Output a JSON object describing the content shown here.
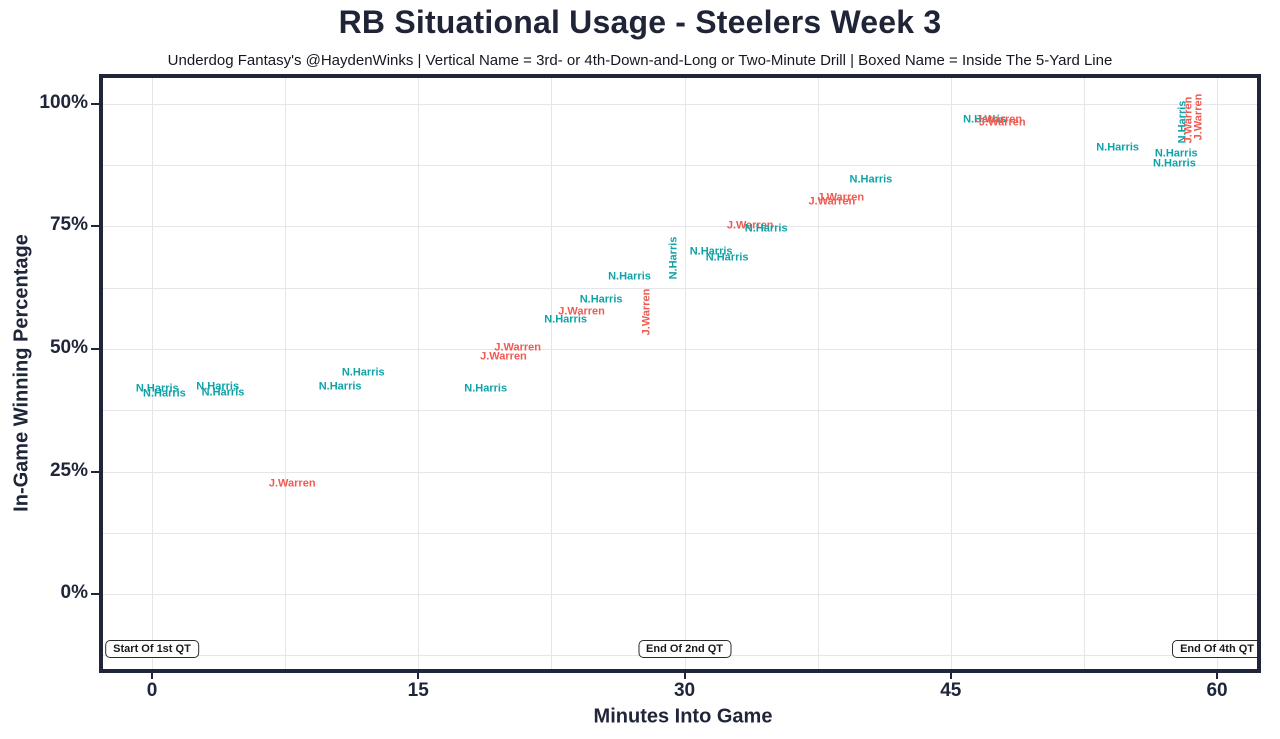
{
  "title": "RB Situational Usage - Steelers Week 3",
  "subtitle": "Underdog Fantasy's @HaydenWinks | Vertical Name = 3rd- or 4th-Down-and-Long or Two-Minute Drill | Boxed Name = Inside The 5-Yard Line",
  "colors": {
    "harris": "#0FA3A8",
    "warren": "#EF5A52",
    "frame": "#20263A",
    "grid": "#E6E6EA",
    "text": "#20263A"
  },
  "chart_data": {
    "type": "scatter",
    "title": "RB Situational Usage - Steelers Week 3",
    "xlabel": "Minutes Into Game",
    "ylabel": "In-Game Winning Percentage",
    "xlim": [
      -2.76,
      62.25
    ],
    "ylim": [
      -15.3,
      105.3
    ],
    "x_tick_values": [
      0,
      15,
      30,
      45,
      60
    ],
    "x_tick_labels": [
      "0",
      "15",
      "30",
      "45",
      "60"
    ],
    "y_tick_values": [
      0,
      25,
      50,
      75,
      100
    ],
    "y_tick_labels": [
      "0%",
      "25%",
      "50%",
      "75%",
      "100%"
    ],
    "x_gridlines": [
      0,
      7.5,
      15,
      22.5,
      30,
      37.5,
      45,
      52.5,
      60
    ],
    "y_gridlines": [
      -12.5,
      0,
      12.5,
      25,
      37.5,
      50,
      62.5,
      75,
      87.5,
      100
    ],
    "grid": true,
    "legend": "none",
    "series_note": "label text plotted at point location; vertical=true means 3rd/4th-down-and-long or two-minute drill",
    "points": [
      {
        "name": "N.Harris",
        "player": "harris",
        "x": 0.3,
        "y": 41.8,
        "vertical": false
      },
      {
        "name": "N.Harris",
        "player": "harris",
        "x": 0.7,
        "y": 40.8,
        "vertical": false
      },
      {
        "name": "N.Harris",
        "player": "harris",
        "x": 3.7,
        "y": 42.2,
        "vertical": false
      },
      {
        "name": "N.Harris",
        "player": "harris",
        "x": 4.0,
        "y": 41.0,
        "vertical": false
      },
      {
        "name": "N.Harris",
        "player": "harris",
        "x": 10.6,
        "y": 42.2,
        "vertical": false
      },
      {
        "name": "N.Harris",
        "player": "harris",
        "x": 11.9,
        "y": 45.1,
        "vertical": false
      },
      {
        "name": "J.Warren",
        "player": "warren",
        "x": 7.9,
        "y": 22.4,
        "vertical": false
      },
      {
        "name": "N.Harris",
        "player": "harris",
        "x": 18.8,
        "y": 41.8,
        "vertical": false
      },
      {
        "name": "J.Warren",
        "player": "warren",
        "x": 19.8,
        "y": 48.4,
        "vertical": false
      },
      {
        "name": "J.Warren",
        "player": "warren",
        "x": 20.6,
        "y": 50.2,
        "vertical": false
      },
      {
        "name": "N.Harris",
        "player": "harris",
        "x": 23.3,
        "y": 55.9,
        "vertical": false
      },
      {
        "name": "J.Warren",
        "player": "warren",
        "x": 24.2,
        "y": 57.6,
        "vertical": false
      },
      {
        "name": "N.Harris",
        "player": "harris",
        "x": 25.3,
        "y": 60.0,
        "vertical": false
      },
      {
        "name": "N.Harris",
        "player": "harris",
        "x": 26.9,
        "y": 64.7,
        "vertical": false
      },
      {
        "name": "J.Warren",
        "player": "warren",
        "x": 27.9,
        "y": 57.6,
        "vertical": true
      },
      {
        "name": "N.Harris",
        "player": "harris",
        "x": 29.4,
        "y": 68.6,
        "vertical": true
      },
      {
        "name": "N.Harris",
        "player": "harris",
        "x": 31.5,
        "y": 69.8,
        "vertical": false
      },
      {
        "name": "N.Harris",
        "player": "harris",
        "x": 32.4,
        "y": 68.6,
        "vertical": false
      },
      {
        "name": "J.Warren",
        "player": "warren",
        "x": 33.7,
        "y": 75.1,
        "vertical": false
      },
      {
        "name": "N.Harris",
        "player": "harris",
        "x": 34.6,
        "y": 74.5,
        "vertical": false
      },
      {
        "name": "J.Warren",
        "player": "warren",
        "x": 38.3,
        "y": 80.0,
        "vertical": false
      },
      {
        "name": "J.Warren",
        "player": "warren",
        "x": 38.8,
        "y": 80.8,
        "vertical": false
      },
      {
        "name": "N.Harris",
        "player": "harris",
        "x": 40.5,
        "y": 84.5,
        "vertical": false
      },
      {
        "name": "N.Harris",
        "player": "harris",
        "x": 46.9,
        "y": 96.7,
        "vertical": false
      },
      {
        "name": "J.Warren",
        "player": "warren",
        "x": 47.7,
        "y": 96.7,
        "vertical": false
      },
      {
        "name": "J.Warren",
        "player": "warren",
        "x": 47.9,
        "y": 96.1,
        "vertical": false
      },
      {
        "name": "N.Harris",
        "player": "harris",
        "x": 54.4,
        "y": 91.0,
        "vertical": false
      },
      {
        "name": "N.Harris",
        "player": "harris",
        "x": 57.6,
        "y": 87.8,
        "vertical": false
      },
      {
        "name": "N.Harris",
        "player": "harris",
        "x": 57.7,
        "y": 89.8,
        "vertical": false
      },
      {
        "name": "N.Harris",
        "player": "harris",
        "x": 58.1,
        "y": 96.3,
        "vertical": true
      },
      {
        "name": "J.Warren",
        "player": "warren",
        "x": 58.4,
        "y": 96.7,
        "vertical": true
      },
      {
        "name": "J.Warren",
        "player": "warren",
        "x": 59.0,
        "y": 97.3,
        "vertical": true
      }
    ],
    "annotations": [
      {
        "label": "Start Of 1st QT",
        "x": 0,
        "y": -11.2
      },
      {
        "label": "End Of 2nd QT",
        "x": 30,
        "y": -11.2
      },
      {
        "label": "End Of 4th QT",
        "x": 60,
        "y": -11.2
      }
    ]
  }
}
